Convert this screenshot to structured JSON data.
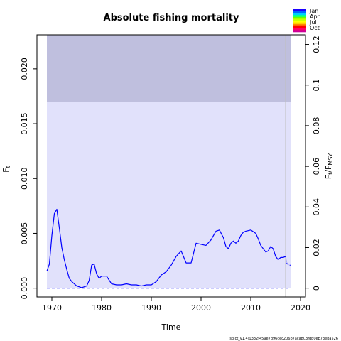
{
  "chart_data": {
    "type": "line",
    "title": "Absolute fishing mortality",
    "xlabel": "Time",
    "ylabel": "F",
    "ylabel_sub": "t",
    "y2label": "F",
    "y2label_sub": "t",
    "y2label_mid": "/F",
    "y2label_sub2": "MSY",
    "xlim": [
      1967,
      2021
    ],
    "ylim": [
      -0.0008,
      0.0231
    ],
    "xticks": [
      1970,
      1980,
      1990,
      2000,
      2010,
      2020
    ],
    "yticks": [
      0.0,
      0.005,
      0.01,
      0.015,
      0.02
    ],
    "ytick_labels": [
      "0.000",
      "0.005",
      "0.010",
      "0.015",
      "0.020"
    ],
    "y2ticks": [
      0,
      0.02,
      0.04,
      0.06,
      0.08,
      0.1,
      0.12
    ],
    "y2tick_labels": [
      "0",
      "0.02",
      "0.04",
      "0.06",
      "0.08",
      "0.1",
      "0.12"
    ],
    "f_to_fmsy_ratio": 5.4,
    "grid": false,
    "colors": {
      "band_outer": "#bfbfde",
      "band_inner": "#e1e1fb",
      "line": "#0000ff",
      "dashed": "#3333ff",
      "vline": "#bfbfbf"
    },
    "ci_band": {
      "x_start": 1969.0,
      "x_end": 2018.0,
      "outer_upper": 0.0231,
      "inner_upper": 0.017,
      "lower": 0.0
    },
    "vline_x": 2017.0,
    "dashed_hline_y": 0.0,
    "series": [
      {
        "x": [
          1969,
          1969.5,
          1970,
          1970.5,
          1971,
          1971.5,
          1972,
          1972.5,
          1973,
          1973.5,
          1974,
          1975,
          1976,
          1977,
          1977.5,
          1978,
          1978.5,
          1979,
          1979.5,
          1980,
          1981,
          1982,
          1983,
          1984,
          1985,
          1986,
          1987,
          1988,
          1989,
          1990,
          1991,
          1992,
          1993,
          1994,
          1995,
          1996,
          1997,
          1998,
          1999,
          2000,
          2001,
          2002,
          2003,
          2003.7,
          2004.5,
          2005,
          2005.5,
          2006,
          2006.5,
          2007,
          2007.5,
          2008,
          2008.5,
          2009,
          2010,
          2011,
          2011.5,
          2012,
          2013,
          2013.5,
          2014,
          2014.5,
          2015,
          2015.5,
          2016,
          2016.5,
          2017
        ],
        "values": [
          0.00155,
          0.0022,
          0.0048,
          0.0068,
          0.0072,
          0.0055,
          0.0037,
          0.0026,
          0.0017,
          0.0009,
          0.0006,
          0.0002,
          5e-05,
          0.0002,
          0.0007,
          0.0021,
          0.0022,
          0.0013,
          0.0009,
          0.0011,
          0.0011,
          0.0004,
          0.0003,
          0.0003,
          0.0004,
          0.0003,
          0.0003,
          0.0002,
          0.0003,
          0.0003,
          0.0006,
          0.0012,
          0.0015,
          0.0021,
          0.0029,
          0.0034,
          0.0023,
          0.0023,
          0.0041,
          0.004,
          0.0039,
          0.0044,
          0.0052,
          0.0053,
          0.0046,
          0.0038,
          0.0036,
          0.0041,
          0.0043,
          0.0041,
          0.0043,
          0.0048,
          0.0051,
          0.0052,
          0.0053,
          0.005,
          0.0045,
          0.0039,
          0.0033,
          0.0034,
          0.0038,
          0.0036,
          0.0029,
          0.0026,
          0.0028,
          0.0028,
          0.0029
        ]
      }
    ],
    "dotted_forecast": {
      "x": [
        2017,
        2017.3,
        2017.6,
        2018
      ],
      "values": [
        0.0029,
        0.0022,
        0.0021,
        0.0021
      ]
    },
    "legend": {
      "labels": [
        "Jan",
        "Apr",
        "Jul",
        "Oct"
      ],
      "colors": [
        "#1a00ff",
        "#0066ff",
        "#00ccff",
        "#00ff99",
        "#66ff00",
        "#ccff00",
        "#ffff00",
        "#ffcc00",
        "#ff6600",
        "#ff0000",
        "#ff0066",
        "#cc0099"
      ]
    },
    "footer": "spict_v1.4@332f459e7d96cec206b7aca803fdb0eb73eba526"
  }
}
